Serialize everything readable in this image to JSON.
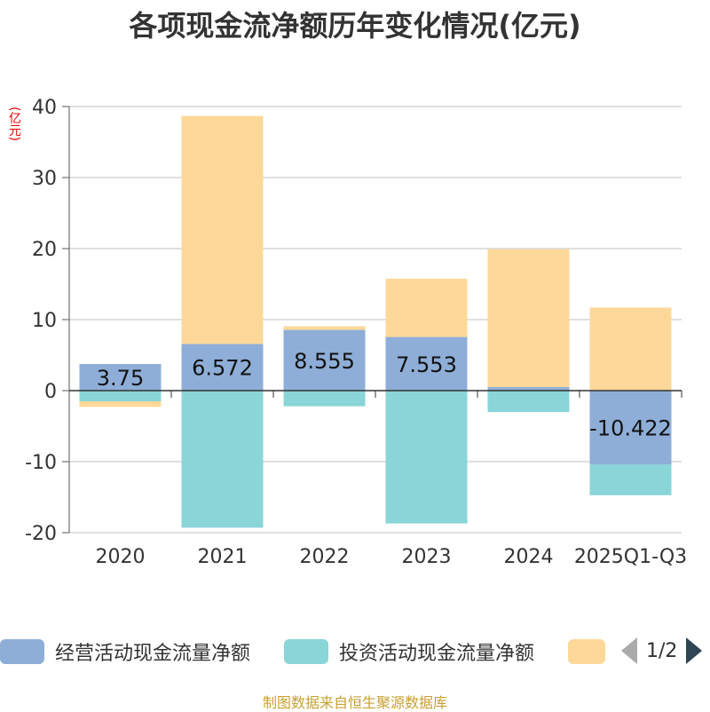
{
  "title": "各项现金流净额历年变化情况(亿元)",
  "unit": "(亿元)",
  "source": "制图数据来自恒生聚源数据库",
  "legend": {
    "items": [
      {
        "label": "经营活动现金流量净额",
        "color": "#8eaed8"
      },
      {
        "label": "投资活动现金流量净额",
        "color": "#89d5d8"
      },
      {
        "label": "",
        "color": "#fdd898"
      }
    ],
    "pager": "1/2"
  },
  "chart_data": {
    "type": "bar",
    "stacked": true,
    "categories": [
      "2020",
      "2021",
      "2022",
      "2023",
      "2024",
      "2025Q1-Q3"
    ],
    "ylim": [
      -20,
      40
    ],
    "yticks": [
      -20,
      -10,
      0,
      10,
      20,
      30,
      40
    ],
    "series": [
      {
        "name": "经营活动现金流量净额",
        "color": "#8eaed8",
        "values": [
          3.75,
          6.572,
          8.555,
          7.553,
          0.5,
          -10.422
        ],
        "labels": [
          "3.75",
          "6.572",
          "8.555",
          "7.553",
          "",
          "-10.422"
        ]
      },
      {
        "name": "投资活动现金流量净额",
        "color": "#89d5d8",
        "values": [
          -1.5,
          -19.3,
          -2.2,
          -18.7,
          -3.0,
          -4.3
        ]
      },
      {
        "name": "",
        "color": "#fdd898",
        "values": [
          -0.8,
          32.1,
          0.5,
          8.2,
          19.4,
          11.7
        ]
      }
    ]
  }
}
